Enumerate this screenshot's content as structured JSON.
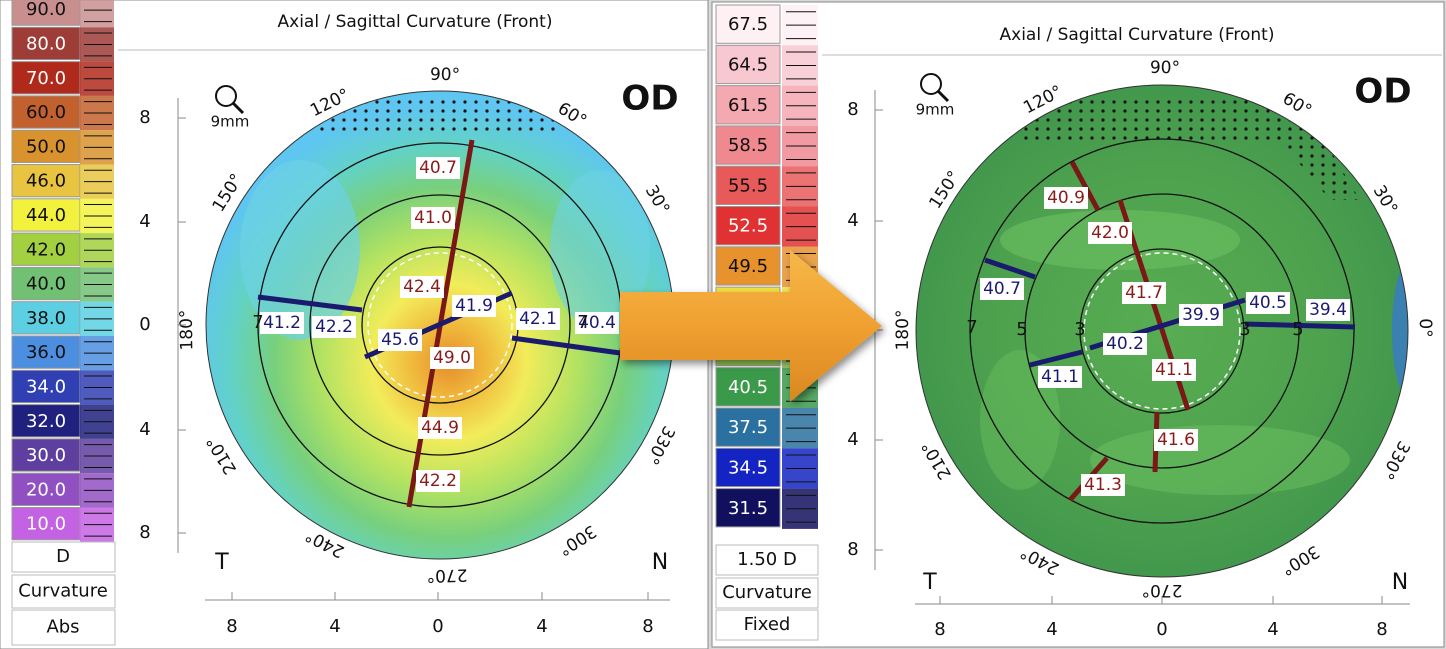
{
  "left": {
    "legend": {
      "rows": [
        {
          "label": "90.0",
          "color": "#c98f8f"
        },
        {
          "label": "80.0",
          "color": "#9e3c38"
        },
        {
          "label": "70.0",
          "color": "#b02a1c"
        },
        {
          "label": "60.0",
          "color": "#c2602e"
        },
        {
          "label": "50.0",
          "color": "#d8922e"
        },
        {
          "label": "46.0",
          "color": "#e8c440"
        },
        {
          "label": "44.0",
          "color": "#f2f23e"
        },
        {
          "label": "42.0",
          "color": "#a2d040"
        },
        {
          "label": "40.0",
          "color": "#72c074"
        },
        {
          "label": "38.0",
          "color": "#5cd0e2"
        },
        {
          "label": "36.0",
          "color": "#4c8ee0"
        },
        {
          "label": "34.0",
          "color": "#3040b2"
        },
        {
          "label": "32.0",
          "color": "#20207e"
        },
        {
          "label": "30.0",
          "color": "#5e3e9e"
        },
        {
          "label": "20.0",
          "color": "#9050c2"
        },
        {
          "label": "10.0",
          "color": "#c462e4"
        }
      ],
      "unit": "D",
      "mode": "Curvature",
      "scale": "Abs"
    },
    "map": {
      "title": "Axial / Sagittal Curvature (Front)",
      "eye": "OD",
      "zoom": "9mm",
      "angles": [
        "90°",
        "60°",
        "30°",
        "150°",
        "120°",
        "180°",
        "210°",
        "240°",
        "270°",
        "300°",
        "330°"
      ],
      "yticks": [
        8,
        4,
        0,
        4,
        8
      ],
      "xticks": [
        8,
        4,
        0,
        4,
        8
      ],
      "sides": [
        "T",
        "N"
      ],
      "ring_labels": [
        "7",
        "7"
      ],
      "red_readings": [
        "40.7",
        "41.0",
        "42.4",
        "49.0",
        "44.9",
        "42.2"
      ],
      "blue_readings": [
        "41.2",
        "42.2",
        "45.6",
        "41.9",
        "42.1",
        "40.4"
      ]
    }
  },
  "right": {
    "legend": {
      "rows": [
        {
          "label": "67.5",
          "color": "#fff0f4"
        },
        {
          "label": "64.5",
          "color": "#f8c8d0"
        },
        {
          "label": "61.5",
          "color": "#f4a8b0"
        },
        {
          "label": "58.5",
          "color": "#f08890"
        },
        {
          "label": "55.5",
          "color": "#e85a5a"
        },
        {
          "label": "52.5",
          "color": "#e03232"
        },
        {
          "label": "49.5",
          "color": "#e8922e"
        },
        {
          "label": null,
          "color": "#f0e040"
        },
        {
          "label": null,
          "color": "#90c850"
        },
        {
          "label": "40.5",
          "color": "#3a9a4a"
        },
        {
          "label": "37.5",
          "color": "#2a70a0"
        },
        {
          "label": "34.5",
          "color": "#1424c2"
        },
        {
          "label": "31.5",
          "color": "#10105e"
        }
      ],
      "unit": "1.50 D",
      "mode": "Curvature",
      "scale": "Fixed"
    },
    "map": {
      "title": "Axial / Sagittal Curvature (Front)",
      "eye": "OD",
      "zoom": "9mm",
      "angles": [
        "90°",
        "60°",
        "30°",
        "150°",
        "120°",
        "180°",
        "0°",
        "210°",
        "240°",
        "270°",
        "300°",
        "330°"
      ],
      "yticks": [
        8,
        4,
        0,
        4,
        8
      ],
      "xticks": [
        8,
        4,
        0,
        4,
        8
      ],
      "sides": [
        "T",
        "N"
      ],
      "ring_labels": [
        "7",
        "5",
        "3",
        "3",
        "5"
      ],
      "red_readings": [
        "40.9",
        "42.0",
        "41.7",
        "41.1",
        "41.6",
        "41.3"
      ],
      "blue_readings": [
        "40.7",
        "41.1",
        "40.2",
        "39.9",
        "40.5",
        "39.4"
      ]
    }
  }
}
